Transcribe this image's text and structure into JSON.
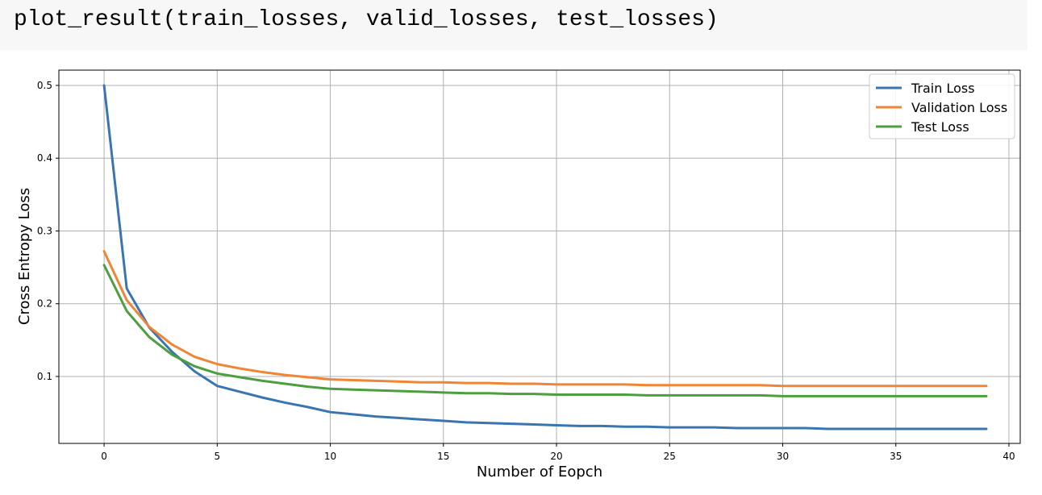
{
  "code_cell": {
    "text": "plot_result(train_losses, valid_losses, test_losses)"
  },
  "chart_data": {
    "type": "line",
    "title": "",
    "xlabel": "Number of Eopch",
    "ylabel": "Cross Entropy Loss",
    "xlim": [
      -2,
      40.5
    ],
    "ylim": [
      0.008,
      0.521
    ],
    "x_ticks": [
      0,
      5,
      10,
      15,
      20,
      25,
      30,
      35,
      40
    ],
    "y_ticks": [
      0.1,
      0.2,
      0.3,
      0.4,
      0.5
    ],
    "grid": true,
    "legend_position": "upper right",
    "x": [
      0,
      1,
      2,
      3,
      4,
      5,
      6,
      7,
      8,
      9,
      10,
      11,
      12,
      13,
      14,
      15,
      16,
      17,
      18,
      19,
      20,
      21,
      22,
      23,
      24,
      25,
      26,
      27,
      28,
      29,
      30,
      31,
      32,
      33,
      34,
      35,
      36,
      37,
      38,
      39
    ],
    "series": [
      {
        "name": "Train Loss",
        "color": "#3a75b0",
        "values": [
          0.5,
          0.221,
          0.167,
          0.134,
          0.107,
          0.087,
          0.079,
          0.071,
          0.064,
          0.058,
          0.051,
          0.048,
          0.045,
          0.043,
          0.041,
          0.039,
          0.037,
          0.036,
          0.035,
          0.034,
          0.033,
          0.032,
          0.032,
          0.031,
          0.031,
          0.03,
          0.03,
          0.03,
          0.029,
          0.029,
          0.029,
          0.029,
          0.028,
          0.028,
          0.028,
          0.028,
          0.028,
          0.028,
          0.028,
          0.028
        ]
      },
      {
        "name": "Validation Loss",
        "color": "#ef8536",
        "values": [
          0.272,
          0.205,
          0.168,
          0.144,
          0.127,
          0.117,
          0.111,
          0.106,
          0.102,
          0.099,
          0.096,
          0.095,
          0.094,
          0.093,
          0.092,
          0.092,
          0.091,
          0.091,
          0.09,
          0.09,
          0.089,
          0.089,
          0.089,
          0.089,
          0.088,
          0.088,
          0.088,
          0.088,
          0.088,
          0.088,
          0.087,
          0.087,
          0.087,
          0.087,
          0.087,
          0.087,
          0.087,
          0.087,
          0.087,
          0.087
        ]
      },
      {
        "name": "Test Loss",
        "color": "#4d9e3e",
        "values": [
          0.253,
          0.19,
          0.154,
          0.13,
          0.114,
          0.104,
          0.099,
          0.094,
          0.09,
          0.086,
          0.083,
          0.082,
          0.081,
          0.08,
          0.079,
          0.078,
          0.077,
          0.077,
          0.076,
          0.076,
          0.075,
          0.075,
          0.075,
          0.075,
          0.074,
          0.074,
          0.074,
          0.074,
          0.074,
          0.074,
          0.073,
          0.073,
          0.073,
          0.073,
          0.073,
          0.073,
          0.073,
          0.073,
          0.073,
          0.073
        ]
      }
    ]
  }
}
